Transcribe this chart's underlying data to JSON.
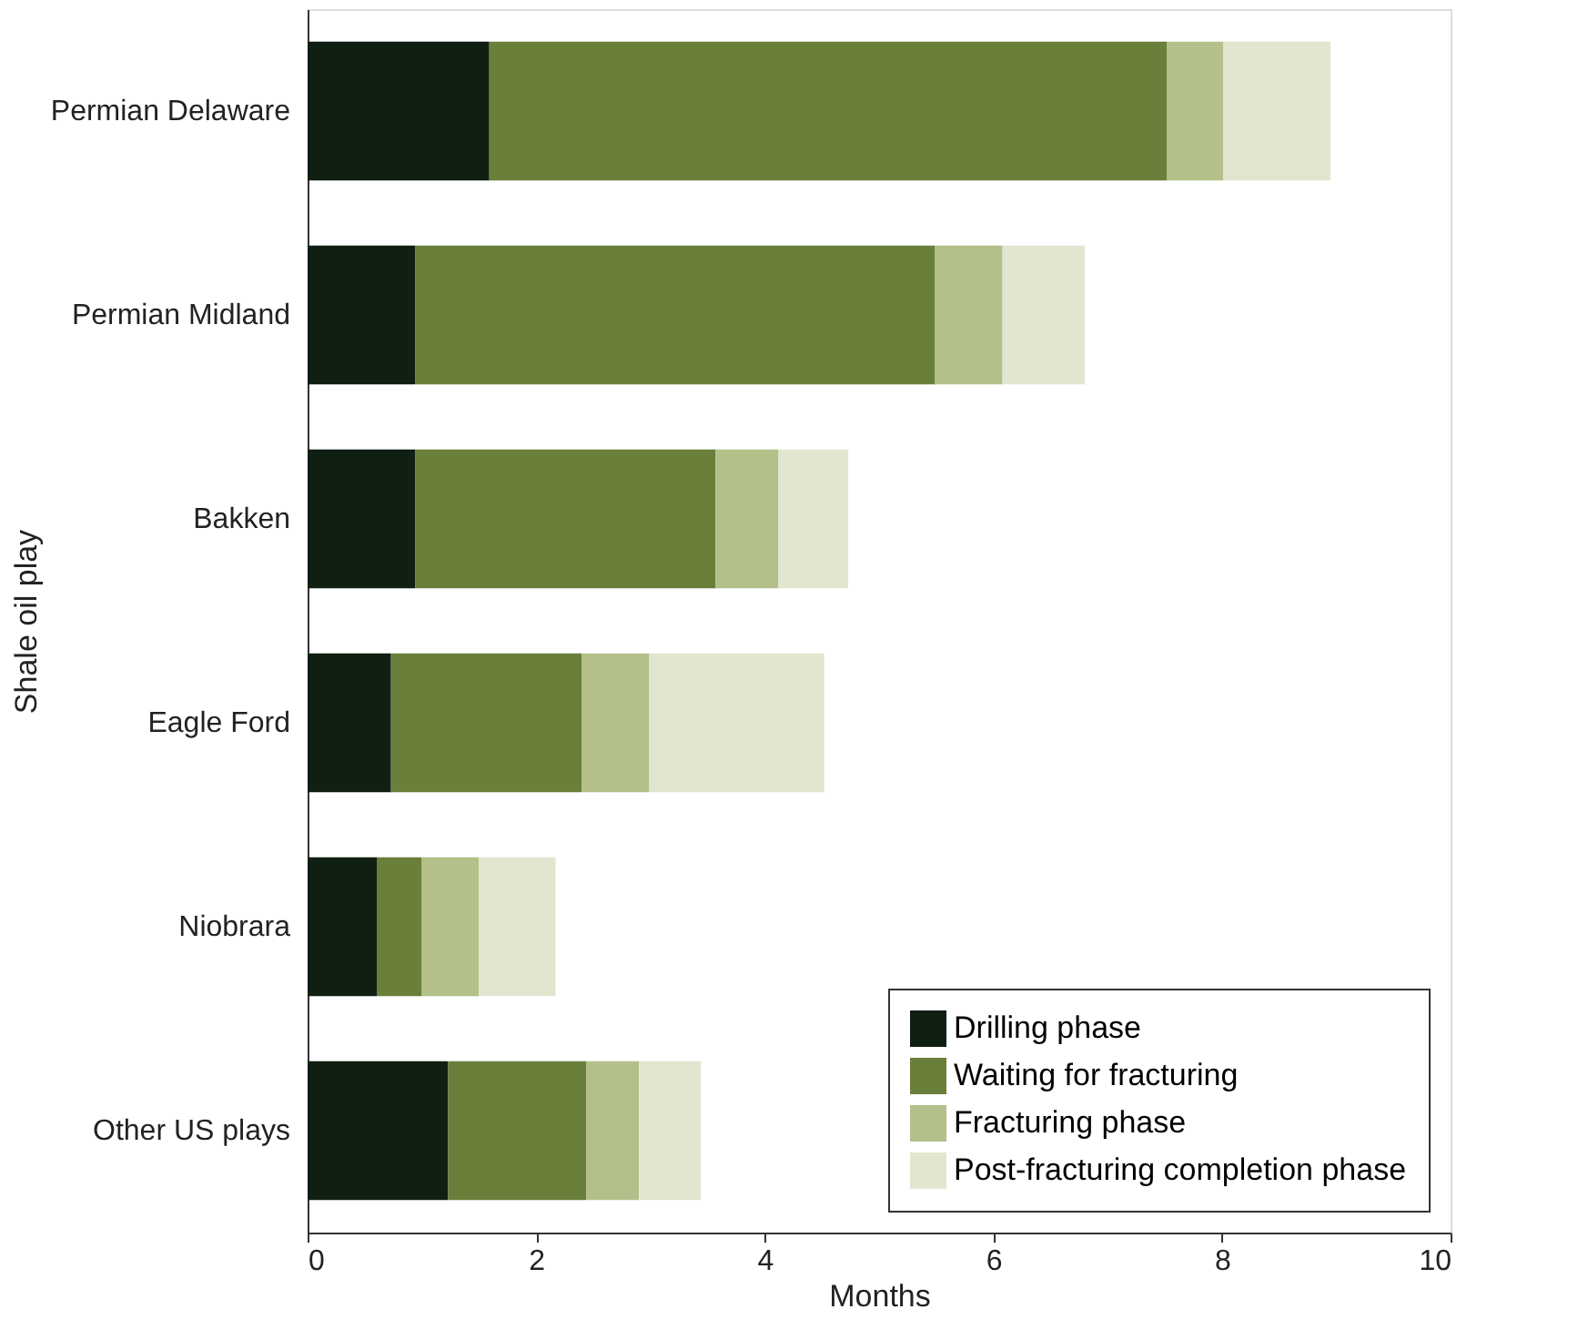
{
  "chart_data": {
    "type": "bar",
    "orientation": "horizontal",
    "stacked": true,
    "xlabel": "Months",
    "ylabel": "Shale oil play",
    "categories": [
      "Permian Delaware",
      "Permian Midland",
      "Bakken",
      "Eagle Ford",
      "Niobrara",
      "Other US plays"
    ],
    "series": [
      {
        "name": "Drilling phase",
        "color": "#0f1f12",
        "values": [
          1.59,
          0.94,
          0.94,
          0.73,
          0.61,
          1.23
        ]
      },
      {
        "name": "Waiting for fracturing",
        "color": "#6a7f3a",
        "values": [
          5.93,
          4.55,
          2.63,
          1.67,
          0.39,
          1.21
        ]
      },
      {
        "name": "Fracturing phase",
        "color": "#b3c08a",
        "values": [
          0.49,
          0.59,
          0.55,
          0.59,
          0.5,
          0.46
        ]
      },
      {
        "name": "Post-fracturing completion phase",
        "color": "#e2e6d0",
        "values": [
          0.94,
          0.72,
          0.61,
          1.53,
          0.67,
          0.54
        ]
      }
    ],
    "xlim": [
      0,
      10
    ],
    "xticks": [
      0,
      2,
      4,
      6,
      8,
      10
    ],
    "grid": false,
    "legend": "bottom right"
  }
}
